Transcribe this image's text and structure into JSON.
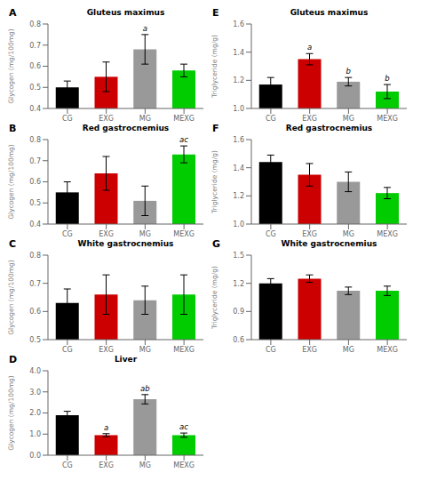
{
  "chart_data": [
    {
      "type": "bar",
      "panel_label": "A",
      "title": "Gluteus maximus",
      "ylabel": "Glycogen (mg/100mg)",
      "categories": [
        "CG",
        "EXG",
        "MG",
        "MEXG"
      ],
      "values": [
        0.5,
        0.55,
        0.68,
        0.58
      ],
      "errors": [
        0.03,
        0.07,
        0.07,
        0.03
      ],
      "colors": [
        "#000000",
        "#cc0000",
        "#999999",
        "#00cc00"
      ],
      "ylim": [
        0.4,
        0.8
      ],
      "yticks": [
        0.4,
        0.5,
        0.6,
        0.7,
        0.8
      ],
      "annotations": [
        {
          "category": "MG",
          "text": "a"
        }
      ],
      "grid": false
    },
    {
      "type": "bar",
      "panel_label": "B",
      "title": "Red gastrocnemius",
      "ylabel": "Glycogen (mg/100mg)",
      "categories": [
        "CG",
        "EXG",
        "MG",
        "MEXG"
      ],
      "values": [
        0.55,
        0.64,
        0.51,
        0.73
      ],
      "errors": [
        0.05,
        0.08,
        0.07,
        0.04
      ],
      "colors": [
        "#000000",
        "#cc0000",
        "#999999",
        "#00cc00"
      ],
      "ylim": [
        0.4,
        0.8
      ],
      "yticks": [
        0.4,
        0.5,
        0.6,
        0.7,
        0.8
      ],
      "annotations": [
        {
          "category": "MEXG",
          "text": "ac"
        }
      ],
      "grid": false
    },
    {
      "type": "bar",
      "panel_label": "C",
      "title": "White gastrocnemius",
      "ylabel": "Glycogen (mg/100mg)",
      "categories": [
        "CG",
        "EXG",
        "MG",
        "MEXG"
      ],
      "values": [
        0.63,
        0.66,
        0.64,
        0.66
      ],
      "errors": [
        0.05,
        0.07,
        0.05,
        0.07
      ],
      "colors": [
        "#000000",
        "#cc0000",
        "#999999",
        "#00cc00"
      ],
      "ylim": [
        0.5,
        0.8
      ],
      "yticks": [
        0.5,
        0.6,
        0.7,
        0.8
      ],
      "annotations": [],
      "grid": false
    },
    {
      "type": "bar",
      "panel_label": "D",
      "title": "Liver",
      "ylabel": "Glycogen (mg/100mg)",
      "categories": [
        "CG",
        "EXG",
        "MG",
        "MEXG"
      ],
      "values": [
        1.9,
        0.95,
        2.65,
        0.95
      ],
      "errors": [
        0.18,
        0.07,
        0.22,
        0.1
      ],
      "colors": [
        "#000000",
        "#cc0000",
        "#999999",
        "#00cc00"
      ],
      "ylim": [
        0.0,
        4.0
      ],
      "yticks": [
        {
          "value": 0,
          "label": "0.0"
        },
        {
          "value": 1,
          "label": "1.0"
        },
        {
          "value": 2,
          "label": "2.0"
        },
        {
          "value": 3,
          "label": "3.0"
        },
        {
          "value": 4,
          "label": "4.0"
        }
      ],
      "annotations": [
        {
          "category": "EXG",
          "text": "a"
        },
        {
          "category": "MG",
          "text": "ab"
        },
        {
          "category": "MEXG",
          "text": "ac"
        }
      ],
      "grid": false
    },
    {
      "type": "bar",
      "panel_label": "E",
      "title": "Gluteus maximus",
      "ylabel": "Triglyceride (mg/g)",
      "categories": [
        "CG",
        "EXG",
        "MG",
        "MEXG"
      ],
      "values": [
        1.17,
        1.35,
        1.19,
        1.12
      ],
      "errors": [
        0.05,
        0.04,
        0.03,
        0.05
      ],
      "colors": [
        "#000000",
        "#cc0000",
        "#999999",
        "#00cc00"
      ],
      "ylim": [
        1.0,
        1.6
      ],
      "yticks": [
        {
          "value": 1,
          "label": "1.0"
        },
        1.2,
        1.4,
        1.6
      ],
      "annotations": [
        {
          "category": "EXG",
          "text": "a"
        },
        {
          "category": "MG",
          "text": "b"
        },
        {
          "category": "MEXG",
          "text": "b"
        }
      ],
      "grid": false
    },
    {
      "type": "bar",
      "panel_label": "F",
      "title": "Red gastrocnemius",
      "ylabel": "Triglyceride (mg/g)",
      "categories": [
        "CG",
        "EXG",
        "MG",
        "MEXG"
      ],
      "values": [
        1.44,
        1.35,
        1.3,
        1.22
      ],
      "errors": [
        0.05,
        0.08,
        0.07,
        0.04
      ],
      "colors": [
        "#000000",
        "#cc0000",
        "#999999",
        "#00cc00"
      ],
      "ylim": [
        1.0,
        1.6
      ],
      "yticks": [
        {
          "value": 1,
          "label": "1.0"
        },
        1.2,
        1.4,
        1.6
      ],
      "annotations": [],
      "grid": false
    },
    {
      "type": "bar",
      "panel_label": "G",
      "title": "White gastrocnemius",
      "ylabel": "Triglyceride (mg/g)",
      "categories": [
        "CG",
        "EXG",
        "MG",
        "MEXG"
      ],
      "values": [
        1.2,
        1.25,
        1.12,
        1.12
      ],
      "errors": [
        0.05,
        0.04,
        0.04,
        0.05
      ],
      "colors": [
        "#000000",
        "#cc0000",
        "#999999",
        "#00cc00"
      ],
      "ylim": [
        0.6,
        1.5
      ],
      "yticks": [
        0.6,
        0.9,
        1.2,
        1.5
      ],
      "annotations": [],
      "grid": false
    }
  ]
}
